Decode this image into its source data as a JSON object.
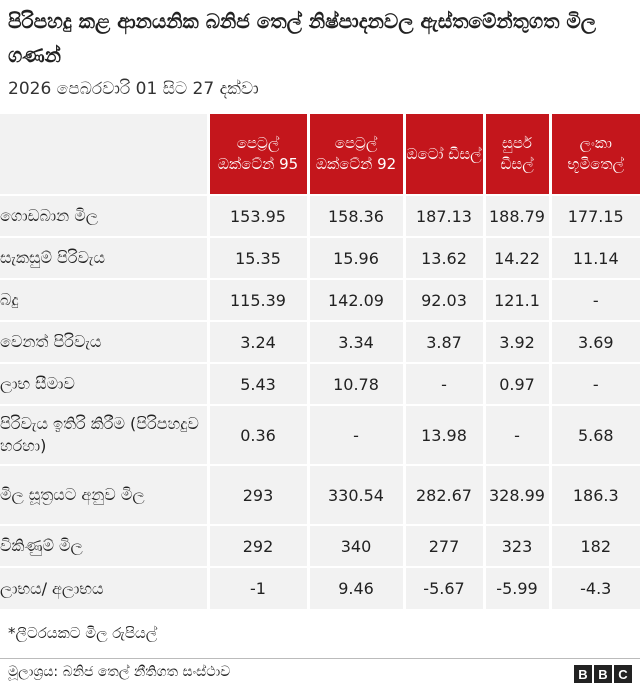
{
  "title": "පිරිපහදු කළ ආනයනික බනිජ තෙල් නිෂ්පාදනවල ඇස්තමේන්තුගත මිල ගණන්",
  "subtitle": "2026 පෙබරවාරි 01 සිට 27 දක්වා",
  "footnote": "*ලීටරයකට මිල රුපියල්",
  "source": "මූලාශ්‍රය: බනිජ තෙල් නීතිගත සංස්ථාව",
  "logo": [
    "B",
    "B",
    "C"
  ],
  "colors": {
    "header_bg": "#c4161c",
    "cell_bg": "#f2f2f2"
  },
  "chart_data": {
    "type": "table",
    "columns": [
      "පෙට්‍රල් ඔක්ටේන් 95",
      "පෙට්‍රල් ඔක්ටේන් 92",
      "ඔටෝ ඩීසල්",
      "සුපර් ඩීසල්",
      "ලංකා භූමිතෙල්"
    ],
    "rows": [
      {
        "label": "ගොඩබාන මිල",
        "values": [
          "153.95",
          "158.36",
          "187.13",
          "188.79",
          "177.15"
        ]
      },
      {
        "label": "සැකසුම් පිරිවැය",
        "values": [
          "15.35",
          "15.96",
          "13.62",
          "14.22",
          "11.14"
        ]
      },
      {
        "label": "බදු",
        "values": [
          "115.39",
          "142.09",
          "92.03",
          "121.1",
          "-"
        ]
      },
      {
        "label": "වෙනත් පිරිවැය",
        "values": [
          "3.24",
          "3.34",
          "3.87",
          "3.92",
          "3.69"
        ]
      },
      {
        "label": "ලාභ සීමාව",
        "values": [
          "5.43",
          "10.78",
          "-",
          "0.97",
          "-"
        ]
      },
      {
        "label": "පිරිවැය ඉතිරි කිරීම (පිරිපහදුව හරහා)",
        "values": [
          "0.36",
          "-",
          "13.98",
          "-",
          "5.68"
        ]
      },
      {
        "label": "මිල සූත්‍රයට අනුව මිල",
        "values": [
          "293",
          "330.54",
          "282.67",
          "328.99",
          "186.3"
        ]
      },
      {
        "label": "විකිණුම් මිල",
        "values": [
          "292",
          "340",
          "277",
          "323",
          "182"
        ]
      },
      {
        "label": "ලාභය/ අලාභය",
        "values": [
          "-1",
          "9.46",
          "-5.67",
          "-5.99",
          "-4.3"
        ]
      }
    ]
  }
}
